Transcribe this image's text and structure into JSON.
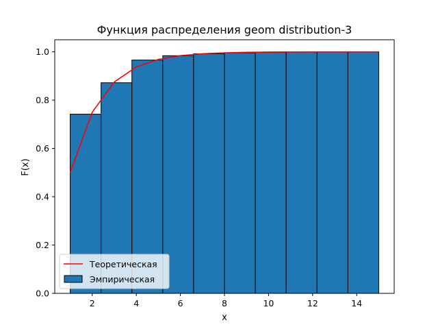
{
  "chart_data": {
    "type": "bar",
    "title": "Функция распределения geom distribution-3",
    "xlabel": "x",
    "ylabel": "F(x)",
    "xlim": [
      0.3,
      15.7
    ],
    "ylim": [
      0,
      1.05
    ],
    "xticks": [
      2,
      4,
      6,
      8,
      10,
      12,
      14
    ],
    "yticks": [
      0.0,
      0.2,
      0.4,
      0.6,
      0.8,
      1.0
    ],
    "grid": false,
    "legend_position": "lower-left",
    "series": [
      {
        "name": "Теоретическая",
        "kind": "line",
        "color": "#ff0000",
        "x": [
          1,
          2,
          3,
          4,
          5,
          6,
          7,
          8,
          9,
          10,
          11,
          12,
          13,
          14,
          15
        ],
        "y": [
          0.5,
          0.75,
          0.875,
          0.9375,
          0.96875,
          0.984375,
          0.9921875,
          0.99609375,
          0.998046875,
          0.9990234375,
          0.99951171875,
          0.999755859375,
          0.9998779296875,
          0.99993896484375,
          0.999969482421875
        ]
      },
      {
        "name": "Эмпирическая",
        "kind": "histogram",
        "color": "#1f77b4",
        "edgecolor": "#000000",
        "bin_edges": [
          1.0,
          2.4,
          3.8,
          5.2,
          6.6,
          8.0,
          9.4,
          10.8,
          12.2,
          13.6,
          15.0
        ],
        "values": [
          0.742,
          0.872,
          0.966,
          0.984,
          0.992,
          0.996,
          0.998,
          0.999,
          1.0,
          1.0
        ]
      }
    ]
  }
}
